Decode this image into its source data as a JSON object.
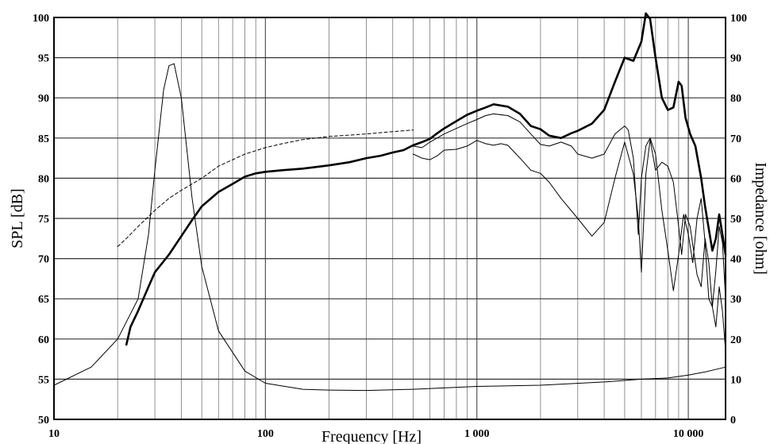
{
  "chart_data": {
    "type": "line",
    "title": "",
    "xlabel": "Frequency [Hz]",
    "ylabel": "SPL [dB]",
    "y2label": "Impedance [ohm]",
    "x_scale": "log",
    "xlim": [
      10,
      15000
    ],
    "ylim": [
      50,
      100
    ],
    "y2lim": [
      0,
      100
    ],
    "grid": true,
    "x_tick_labels": [
      {
        "value": 10,
        "label": "10"
      },
      {
        "value": 100,
        "label": "100"
      },
      {
        "value": 1000,
        "label": "1 000"
      },
      {
        "value": 10000,
        "label": "10 000"
      }
    ],
    "y_ticks": [
      50,
      55,
      60,
      65,
      70,
      75,
      80,
      85,
      90,
      95,
      100
    ],
    "y2_ticks": [
      0,
      10,
      20,
      30,
      40,
      50,
      60,
      70,
      80,
      90,
      100
    ],
    "series": [
      {
        "style": "thick",
        "axis": "left",
        "x": [
          22,
          23,
          25,
          28,
          30,
          35,
          40,
          45,
          50,
          60,
          70,
          80,
          90,
          100,
          120,
          150,
          200,
          250,
          300,
          350,
          400,
          450,
          500,
          550,
          600,
          650,
          700,
          800,
          900,
          1000,
          1100,
          1200,
          1400,
          1600,
          1800,
          2000,
          2200,
          2500,
          2800,
          3000,
          3500,
          4000,
          4500,
          5000,
          5500,
          6000,
          6300,
          6600,
          7000,
          7500,
          8000,
          8500,
          9000,
          9300,
          9700,
          10200,
          10800,
          11500,
          12000,
          13000,
          13500,
          14000,
          14500,
          15000
        ],
        "y": [
          59.3,
          61.5,
          63.5,
          66.5,
          68.3,
          70.5,
          72.8,
          74.8,
          76.5,
          78.3,
          79.3,
          80.2,
          80.6,
          80.8,
          81.0,
          81.2,
          81.6,
          82.0,
          82.5,
          82.8,
          83.2,
          83.5,
          84.1,
          84.5,
          84.9,
          85.6,
          86.2,
          87.1,
          87.9,
          88.4,
          88.8,
          89.2,
          88.9,
          88.0,
          86.5,
          86.1,
          85.3,
          85.0,
          85.6,
          85.9,
          86.8,
          88.5,
          92.0,
          95.0,
          94.6,
          97.0,
          100.5,
          99.8,
          95.0,
          90.0,
          88.5,
          88.8,
          92.0,
          91.5,
          87.5,
          85.5,
          84.0,
          80.0,
          76.5,
          71.0,
          72.5,
          75.5,
          73.0,
          70.5
        ]
      },
      {
        "style": "thin",
        "axis": "left",
        "x": [
          500,
          550,
          600,
          700,
          800,
          900,
          1000,
          1100,
          1200,
          1400,
          1600,
          1800,
          2000,
          2200,
          2500,
          2800,
          3000,
          3500,
          4000,
          4500,
          5000,
          5200,
          5500,
          5800,
          6000,
          6300,
          6600,
          7000,
          7500,
          8000,
          8500,
          9000,
          9500,
          10000,
          10500,
          11000,
          11500,
          12000,
          12500,
          13000,
          13500,
          14000,
          14500,
          15000
        ],
        "y": [
          84.0,
          83.8,
          84.5,
          85.5,
          86.2,
          86.8,
          87.3,
          87.8,
          88.0,
          87.8,
          87.0,
          85.5,
          84.2,
          84.0,
          84.5,
          84.0,
          83.0,
          82.5,
          83.0,
          85.5,
          86.5,
          86.0,
          82.5,
          73.0,
          80.0,
          84.0,
          85.0,
          83.0,
          76.0,
          71.0,
          66.0,
          70.5,
          75.5,
          73.0,
          69.5,
          75.0,
          77.5,
          72.0,
          65.0,
          64.0,
          68.5,
          74.0,
          72.0,
          65.0
        ]
      },
      {
        "style": "thin",
        "axis": "left",
        "x": [
          500,
          550,
          600,
          650,
          700,
          800,
          900,
          1000,
          1100,
          1200,
          1300,
          1400,
          1600,
          1800,
          2000,
          2200,
          2500,
          3000,
          3500,
          4000,
          4500,
          5000,
          5500,
          5800,
          6000,
          6300,
          6600,
          7000,
          7500,
          8000,
          8500,
          9000,
          9300,
          9700,
          10200,
          11000,
          11500,
          12000,
          12500,
          13000,
          13500,
          14000,
          14500,
          15000
        ],
        "y": [
          83.0,
          82.5,
          82.3,
          82.8,
          83.5,
          83.6,
          84.0,
          84.7,
          84.3,
          84.1,
          84.3,
          84.1,
          82.5,
          81.0,
          80.6,
          79.5,
          77.5,
          75.0,
          72.8,
          74.5,
          80.0,
          84.5,
          80.5,
          75.0,
          68.3,
          80.5,
          84.8,
          81.0,
          82.0,
          81.5,
          79.5,
          74.0,
          70.5,
          75.5,
          74.0,
          68.0,
          66.5,
          72.5,
          69.5,
          64.0,
          61.5,
          66.5,
          63.5,
          58.5
        ]
      },
      {
        "style": "thin",
        "axis": "right",
        "x": [
          10,
          15,
          20,
          25,
          28,
          30,
          33,
          35,
          37,
          40,
          45,
          50,
          60,
          80,
          100,
          150,
          200,
          300,
          500,
          1000,
          2000,
          4000,
          6000,
          8000,
          10000,
          12000,
          15000
        ],
        "y": [
          8.5,
          13.0,
          20.0,
          30.0,
          46.0,
          62.0,
          82.0,
          88.0,
          88.5,
          80.0,
          55.0,
          38.0,
          22.0,
          12.0,
          9.0,
          7.5,
          7.3,
          7.2,
          7.5,
          8.2,
          8.5,
          9.3,
          10.0,
          10.3,
          11.0,
          11.8,
          13.0
        ]
      },
      {
        "style": "dashed",
        "axis": "left",
        "x": [
          20,
          22,
          25,
          30,
          35,
          40,
          50,
          60,
          70,
          80,
          100,
          120,
          150,
          200,
          300,
          400,
          500
        ],
        "y": [
          71.5,
          72.5,
          74.0,
          76.0,
          77.5,
          78.5,
          80.0,
          81.5,
          82.3,
          83.0,
          83.8,
          84.3,
          84.8,
          85.2,
          85.5,
          85.8,
          86.0
        ]
      }
    ]
  }
}
